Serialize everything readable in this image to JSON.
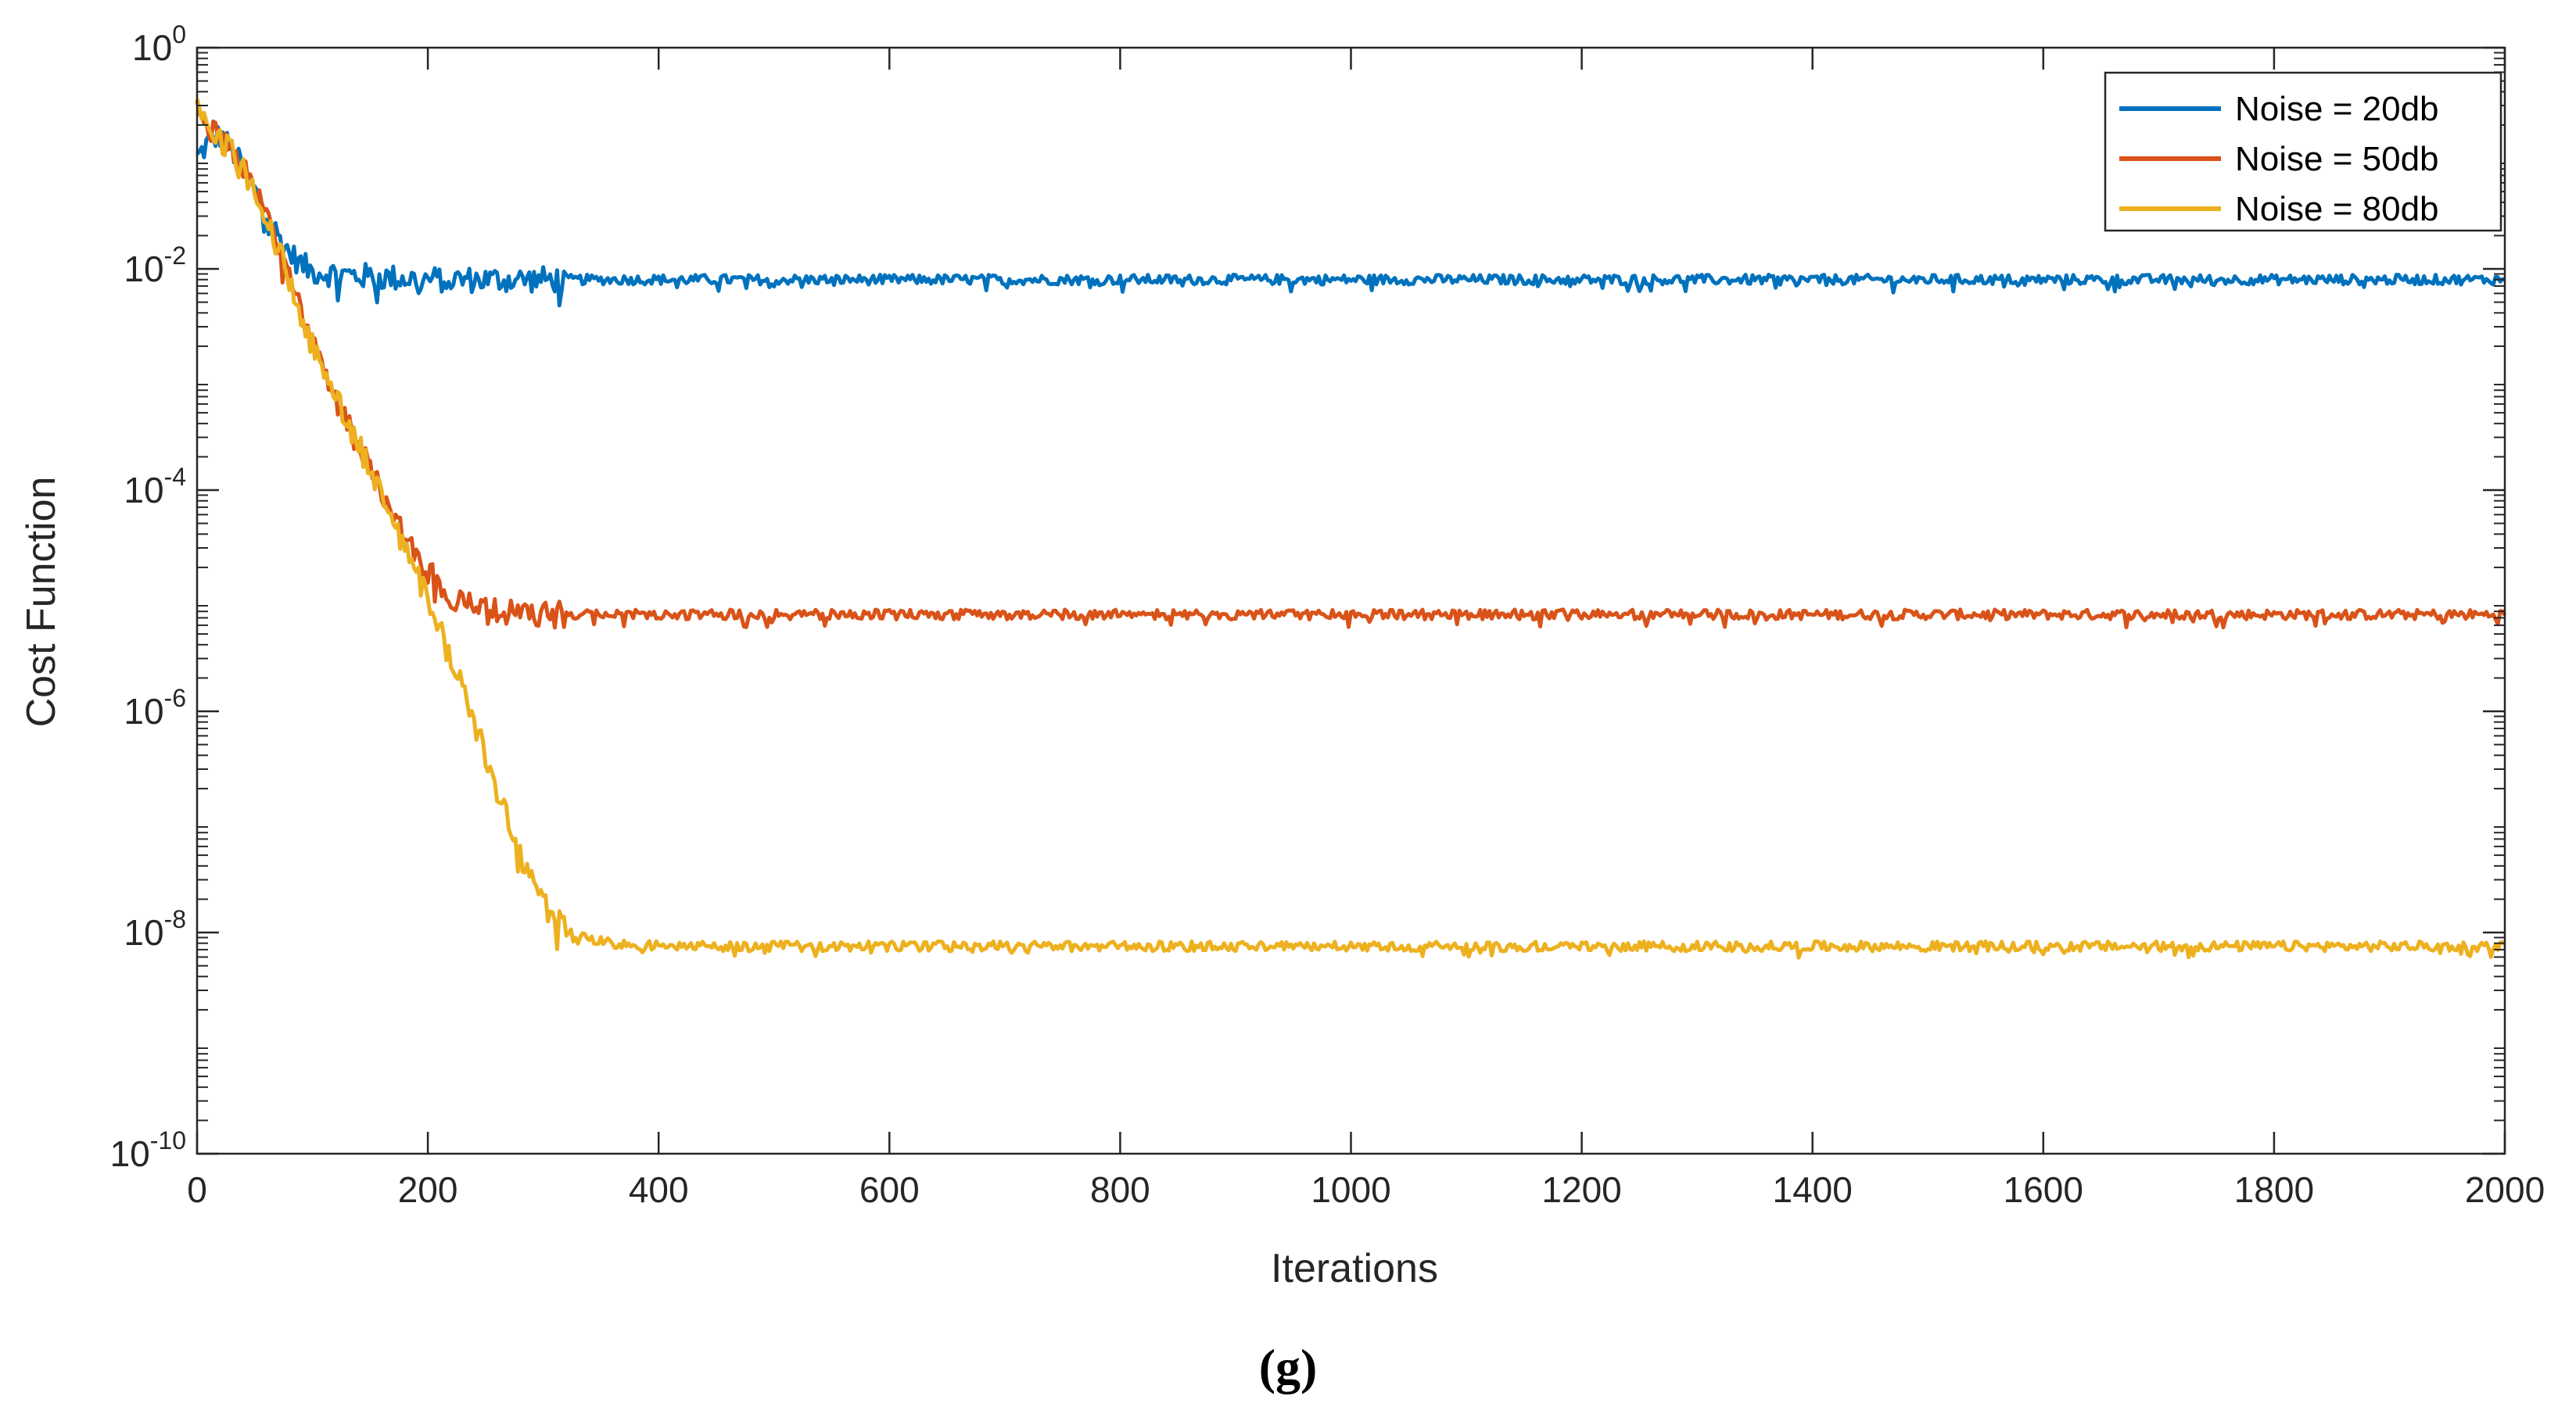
{
  "chart_data": {
    "type": "line",
    "xlabel": "Iterations",
    "ylabel": "Cost Function",
    "xlim": [
      0,
      2000
    ],
    "ylim": [
      1e-10,
      1
    ],
    "yscale": "log",
    "grid": false,
    "box": true,
    "legend_position": "top-right",
    "xticks": [
      0,
      200,
      400,
      600,
      800,
      1000,
      1200,
      1400,
      1600,
      1800,
      2000
    ],
    "xtick_labels": [
      "0",
      "200",
      "400",
      "600",
      "800",
      "1000",
      "1200",
      "1400",
      "1600",
      "1800",
      "2000"
    ],
    "yticks": [
      1,
      0.01,
      0.0001,
      1e-06,
      1e-08,
      1e-10
    ],
    "ytick_labels": [
      {
        "base": "10",
        "exp": "0"
      },
      {
        "base": "10",
        "exp": "-2"
      },
      {
        "base": "10",
        "exp": "-4"
      },
      {
        "base": "10",
        "exp": "-6"
      },
      {
        "base": "10",
        "exp": "-8"
      },
      {
        "base": "10",
        "exp": "-10"
      }
    ],
    "series": [
      {
        "name": "Noise = 20db",
        "color": "#0072BD",
        "x": [
          0,
          10,
          20,
          30,
          40,
          50,
          60,
          70,
          80,
          90,
          100,
          120,
          150,
          200,
          250,
          300,
          400,
          600,
          800,
          1000,
          1200,
          1400,
          1600,
          1800,
          2000
        ],
        "y": [
          0.1,
          0.14,
          0.16,
          0.12,
          0.08,
          0.05,
          0.032,
          0.02,
          0.014,
          0.011,
          0.0095,
          0.009,
          0.0085,
          0.008,
          0.008,
          0.008,
          0.008,
          0.008,
          0.008,
          0.008,
          0.008,
          0.008,
          0.008,
          0.008,
          0.008
        ]
      },
      {
        "name": "Noise = 50db",
        "color": "#D95319",
        "x": [
          0,
          10,
          20,
          40,
          60,
          80,
          100,
          120,
          140,
          160,
          180,
          200,
          220,
          240,
          260,
          280,
          300,
          400,
          600,
          800,
          1000,
          1200,
          1400,
          1600,
          1800,
          2000
        ],
        "y": [
          0.3,
          0.2,
          0.15,
          0.08,
          0.03,
          0.008,
          0.002,
          0.0007,
          0.00025,
          0.0001,
          4e-05,
          1.8e-05,
          1.1e-05,
          8.5e-06,
          7.8e-06,
          7.6e-06,
          7.5e-06,
          7.5e-06,
          7.5e-06,
          7.5e-06,
          7.5e-06,
          7.5e-06,
          7.5e-06,
          7.5e-06,
          7.5e-06,
          7.5e-06
        ]
      },
      {
        "name": "Noise = 80db",
        "color": "#EDB120",
        "x": [
          0,
          10,
          20,
          40,
          60,
          80,
          100,
          120,
          140,
          160,
          180,
          200,
          220,
          240,
          260,
          280,
          300,
          320,
          340,
          360,
          400,
          600,
          800,
          1000,
          1200,
          1400,
          1600,
          1800,
          2000
        ],
        "y": [
          0.3,
          0.2,
          0.15,
          0.08,
          0.03,
          0.008,
          0.002,
          0.0007,
          0.00025,
          0.0001,
          3e-05,
          1e-05,
          3e-06,
          8e-07,
          2e-07,
          5e-08,
          1.8e-08,
          1e-08,
          8.5e-09,
          8e-09,
          7.5e-09,
          7.5e-09,
          7.5e-09,
          7.5e-09,
          7.5e-09,
          7.5e-09,
          7.5e-09,
          7.5e-09,
          7.5e-09
        ]
      }
    ]
  },
  "caption": "(g)"
}
